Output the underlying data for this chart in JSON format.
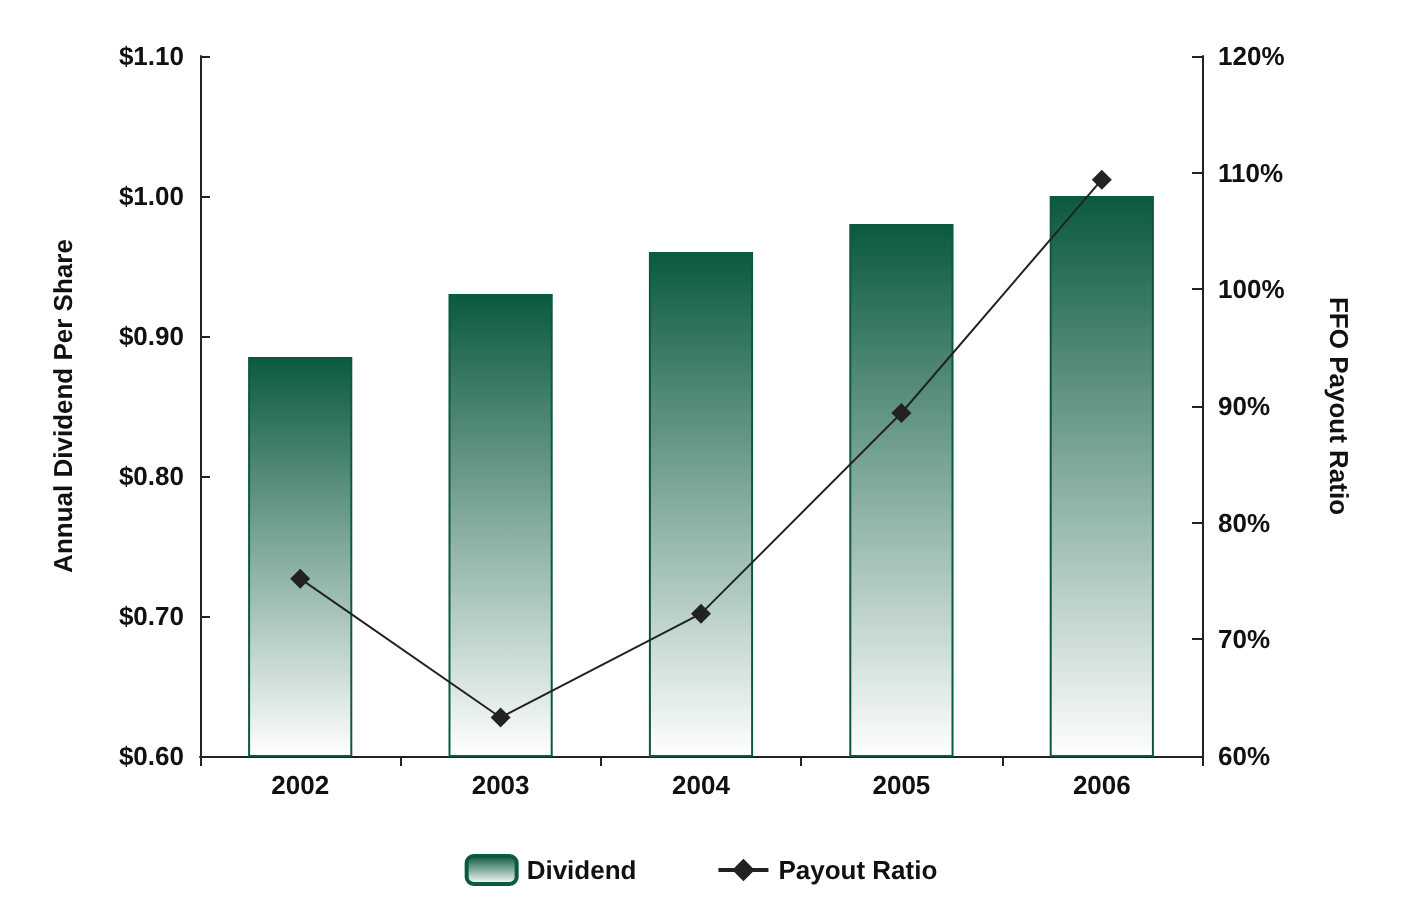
{
  "chart_data": {
    "type": "bar",
    "ylabel": "Annual Dividend Per Share",
    "y2label": "FFO Payout Ratio",
    "categories": [
      "2002",
      "2003",
      "2004",
      "2005",
      "2006"
    ],
    "series": [
      {
        "name": "Dividend",
        "color": "#0b5a3e",
        "values": [
          0.885,
          0.93,
          0.96,
          0.98,
          1.0
        ]
      },
      {
        "name": "Payout Ratio",
        "type": "line",
        "axis": "y2",
        "color": "#222222",
        "marker": "diamond",
        "values": [
          75.2,
          63.3,
          72.2,
          89.4,
          109.4
        ]
      }
    ],
    "ylim": [
      0.6,
      1.1
    ],
    "yticks": [
      {
        "value": 0.6,
        "label": "$0.60"
      },
      {
        "value": 0.7,
        "label": "$0.70"
      },
      {
        "value": 0.8,
        "label": "$0.80"
      },
      {
        "value": 0.9,
        "label": "$0.90"
      },
      {
        "value": 1.0,
        "label": "$1.00"
      },
      {
        "value": 1.1,
        "label": "$1.10"
      }
    ],
    "y2lim": [
      60,
      120
    ],
    "y2ticks": [
      {
        "value": 60,
        "label": "60%"
      },
      {
        "value": 70,
        "label": "70%"
      },
      {
        "value": 80,
        "label": "80%"
      },
      {
        "value": 90,
        "label": "90%"
      },
      {
        "value": 100,
        "label": "100%"
      },
      {
        "value": 110,
        "label": "110%"
      },
      {
        "value": 120,
        "label": "120%"
      }
    ],
    "grid": false,
    "legend": "bottom"
  }
}
